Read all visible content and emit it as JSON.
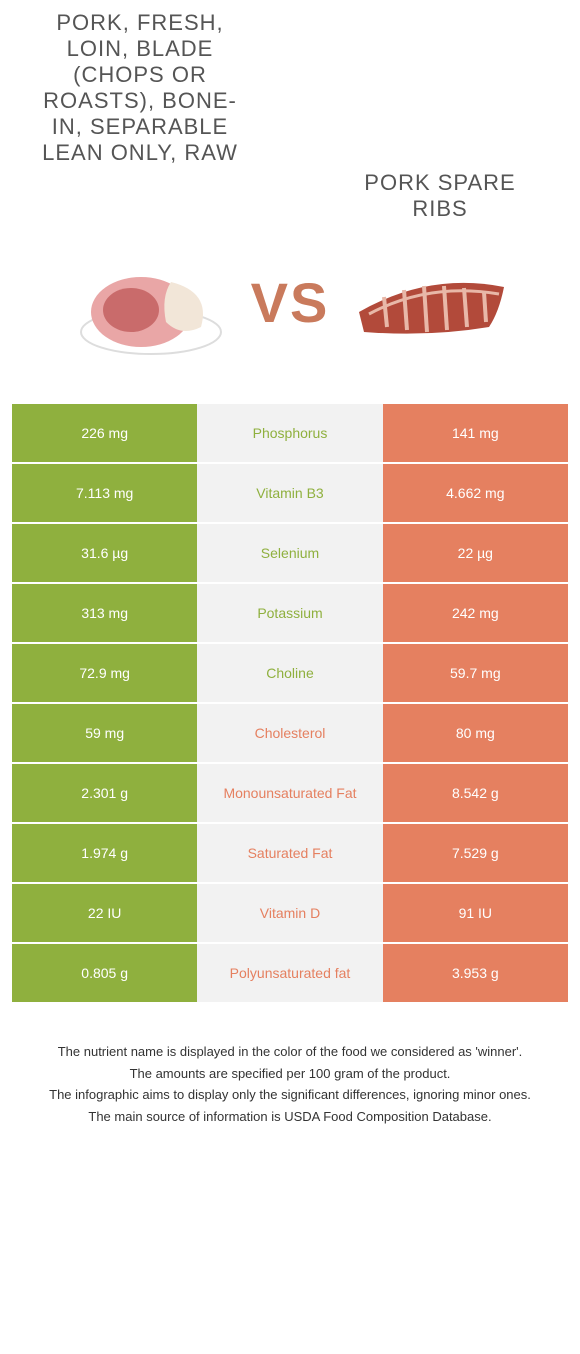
{
  "header": {
    "left_title": "Pork, fresh, loin, blade (chops or roasts), bone-in, separable lean only, raw",
    "right_title": "Pork spare ribs",
    "vs": "VS"
  },
  "colors": {
    "green": "#8fb03e",
    "orange": "#e58060",
    "mid_bg": "#f2f2f2",
    "text_on_color": "#ffffff"
  },
  "rows": [
    {
      "left": "226 mg",
      "name": "Phosphorus",
      "right": "141 mg",
      "winner": "left"
    },
    {
      "left": "7.113 mg",
      "name": "Vitamin B3",
      "right": "4.662 mg",
      "winner": "left"
    },
    {
      "left": "31.6 µg",
      "name": "Selenium",
      "right": "22 µg",
      "winner": "left"
    },
    {
      "left": "313 mg",
      "name": "Potassium",
      "right": "242 mg",
      "winner": "left"
    },
    {
      "left": "72.9 mg",
      "name": "Choline",
      "right": "59.7 mg",
      "winner": "left"
    },
    {
      "left": "59 mg",
      "name": "Cholesterol",
      "right": "80 mg",
      "winner": "right"
    },
    {
      "left": "2.301 g",
      "name": "Monounsaturated Fat",
      "right": "8.542 g",
      "winner": "right"
    },
    {
      "left": "1.974 g",
      "name": "Saturated Fat",
      "right": "7.529 g",
      "winner": "right"
    },
    {
      "left": "22 IU",
      "name": "Vitamin D",
      "right": "91 IU",
      "winner": "right"
    },
    {
      "left": "0.805 g",
      "name": "Polyunsaturated fat",
      "right": "3.953 g",
      "winner": "right"
    }
  ],
  "footer": {
    "line1": "The nutrient name is displayed in the color of the food we considered as 'winner'.",
    "line2": "The amounts are specified per 100 gram of the product.",
    "line3": "The infographic aims to display only the significant differences, ignoring minor ones.",
    "line4": "The main source of information is USDA Food Composition Database."
  }
}
